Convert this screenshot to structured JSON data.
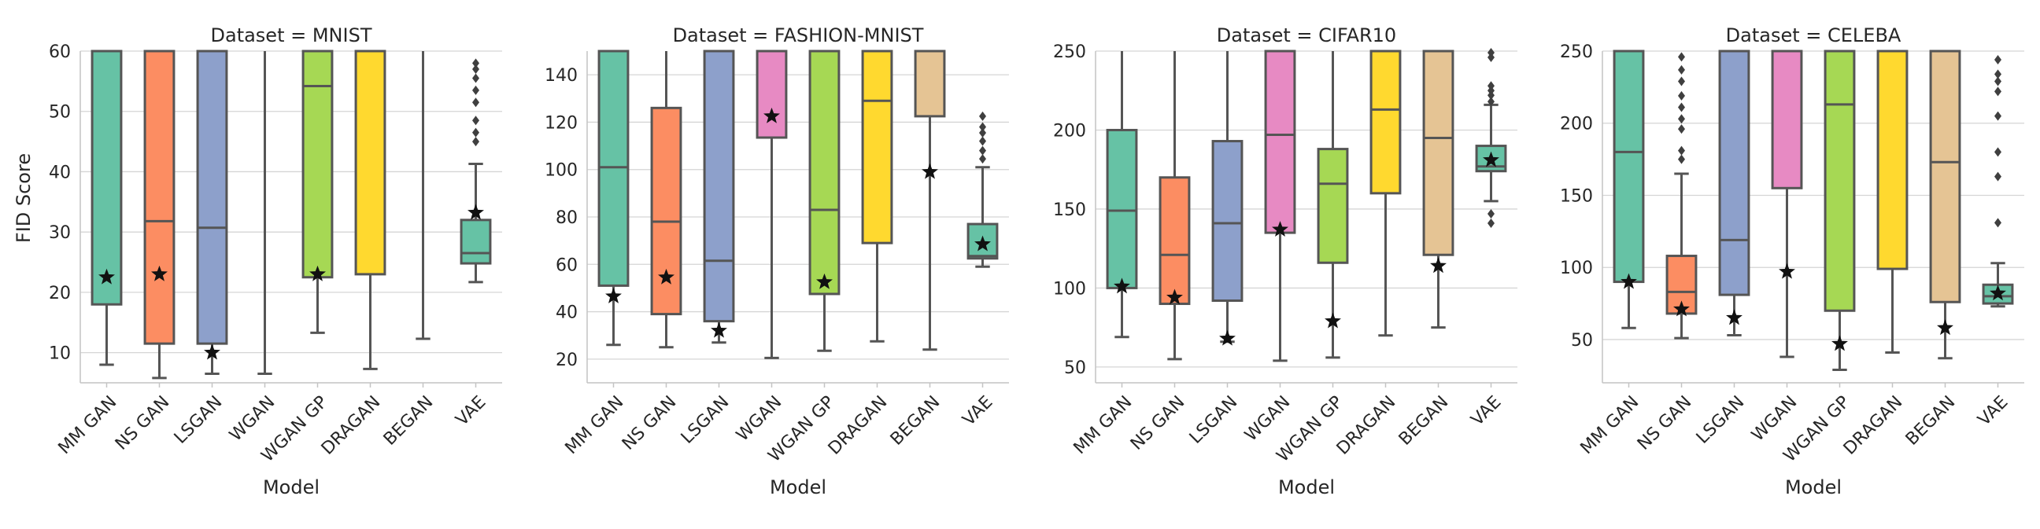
{
  "figure": {
    "ylabel": "FID Score",
    "xlabel": "Model"
  },
  "palette": [
    "#66c2a5",
    "#fc8d62",
    "#8da0cb",
    "#e78ac3",
    "#a6d854",
    "#ffd92f",
    "#e5c494",
    "#66c2a5"
  ],
  "chart_data": [
    {
      "type": "box",
      "title": "Dataset = MNIST",
      "xlabel": "Model",
      "ylabel": "FID Score",
      "categories": [
        "MM GAN",
        "NS GAN",
        "LSGAN",
        "WGAN",
        "WGAN GP",
        "DRAGAN",
        "BEGAN",
        "VAE"
      ],
      "ylim": [
        5,
        60
      ],
      "yticks": [
        10,
        20,
        30,
        40,
        50,
        60
      ],
      "grid": true,
      "boxes": [
        {
          "whislo": 8,
          "q1": 18,
          "med": 60,
          "q3": 60,
          "whishi": 60,
          "best": 22.5,
          "fliers": []
        },
        {
          "whislo": 5.8,
          "q1": 11.5,
          "med": 31.8,
          "q3": 60,
          "whishi": 60,
          "best": 23,
          "fliers": []
        },
        {
          "whislo": 6.5,
          "q1": 11.5,
          "med": 30.7,
          "q3": 60,
          "whishi": 60,
          "best": 10,
          "fliers": []
        },
        {
          "whislo": 6.5,
          "q1": 60,
          "med": 60,
          "q3": 60,
          "whishi": 60,
          "best": null,
          "fliers": []
        },
        {
          "whislo": 13.3,
          "q1": 22.5,
          "med": 54.2,
          "q3": 60,
          "whishi": 60,
          "best": 23,
          "fliers": []
        },
        {
          "whislo": 7.3,
          "q1": 23,
          "med": 60,
          "q3": 60,
          "whishi": 60,
          "best": null,
          "fliers": []
        },
        {
          "whislo": 12.3,
          "q1": 60,
          "med": 60,
          "q3": 60,
          "whishi": 60,
          "best": null,
          "fliers": []
        },
        {
          "whislo": 21.7,
          "q1": 24.8,
          "med": 26.5,
          "q3": 32,
          "whishi": 41.3,
          "best": 33.2,
          "fliers": [
            45,
            46.5,
            48.5,
            51.5,
            53.5,
            55.5,
            57,
            58
          ]
        }
      ]
    },
    {
      "type": "box",
      "title": "Dataset = FASHION-MNIST",
      "xlabel": "Model",
      "ylabel": "",
      "categories": [
        "MM GAN",
        "NS GAN",
        "LSGAN",
        "WGAN",
        "WGAN GP",
        "DRAGAN",
        "BEGAN",
        "VAE"
      ],
      "ylim": [
        10,
        150
      ],
      "yticks": [
        20,
        40,
        60,
        80,
        100,
        120,
        140
      ],
      "grid": true,
      "boxes": [
        {
          "whislo": 26,
          "q1": 51,
          "med": 101,
          "q3": 150,
          "whishi": 150,
          "best": 46.5,
          "fliers": []
        },
        {
          "whislo": 25,
          "q1": 39,
          "med": 78,
          "q3": 126,
          "whishi": 150,
          "best": 54.5,
          "fliers": []
        },
        {
          "whislo": 27,
          "q1": 36,
          "med": 61.5,
          "q3": 150,
          "whishi": 150,
          "best": 32,
          "fliers": []
        },
        {
          "whislo": 20.5,
          "q1": 113.5,
          "med": 150,
          "q3": 150,
          "whishi": 150,
          "best": 122.5,
          "fliers": []
        },
        {
          "whislo": 23.5,
          "q1": 47.5,
          "med": 83,
          "q3": 150,
          "whishi": 150,
          "best": 52.5,
          "fliers": []
        },
        {
          "whislo": 27.5,
          "q1": 69,
          "med": 129,
          "q3": 150,
          "whishi": 150,
          "best": null,
          "fliers": []
        },
        {
          "whislo": 24,
          "q1": 122.5,
          "med": 150,
          "q3": 150,
          "whishi": 150,
          "best": 99,
          "fliers": []
        },
        {
          "whislo": 59,
          "q1": 62.5,
          "med": 63.5,
          "q3": 77,
          "whishi": 101,
          "best": 68.5,
          "fliers": [
            104.5,
            108,
            112,
            115.5,
            118,
            122.5
          ]
        }
      ]
    },
    {
      "type": "box",
      "title": "Dataset = CIFAR10",
      "xlabel": "Model",
      "ylabel": "",
      "categories": [
        "MM GAN",
        "NS GAN",
        "LSGAN",
        "WGAN",
        "WGAN GP",
        "DRAGAN",
        "BEGAN",
        "VAE"
      ],
      "ylim": [
        40,
        250
      ],
      "yticks": [
        50,
        100,
        150,
        200,
        250
      ],
      "grid": true,
      "boxes": [
        {
          "whislo": 69,
          "q1": 100,
          "med": 149,
          "q3": 200,
          "whishi": 250,
          "best": 101,
          "fliers": []
        },
        {
          "whislo": 55,
          "q1": 90,
          "med": 121,
          "q3": 170,
          "whishi": 250,
          "best": 94,
          "fliers": []
        },
        {
          "whislo": 66,
          "q1": 92,
          "med": 141,
          "q3": 193,
          "whishi": 250,
          "best": 68,
          "fliers": []
        },
        {
          "whislo": 54,
          "q1": 135,
          "med": 197,
          "q3": 250,
          "whishi": 250,
          "best": 137,
          "fliers": []
        },
        {
          "whislo": 56,
          "q1": 116,
          "med": 166,
          "q3": 188,
          "whishi": 250,
          "best": 79,
          "fliers": []
        },
        {
          "whislo": 70,
          "q1": 160,
          "med": 213,
          "q3": 250,
          "whishi": 250,
          "best": null,
          "fliers": []
        },
        {
          "whislo": 75,
          "q1": 121,
          "med": 195,
          "q3": 250,
          "whishi": 250,
          "best": 114,
          "fliers": []
        },
        {
          "whislo": 155,
          "q1": 174,
          "med": 177,
          "q3": 190,
          "whishi": 216,
          "best": 181,
          "fliers": [
            141,
            147,
            218,
            222,
            225,
            228,
            246,
            249
          ]
        }
      ]
    },
    {
      "type": "box",
      "title": "Dataset = CELEBA",
      "xlabel": "Model",
      "ylabel": "",
      "categories": [
        "MM GAN",
        "NS GAN",
        "LSGAN",
        "WGAN",
        "WGAN GP",
        "DRAGAN",
        "BEGAN",
        "VAE"
      ],
      "ylim": [
        20,
        250
      ],
      "yticks": [
        50,
        100,
        150,
        200,
        250
      ],
      "grid": true,
      "boxes": [
        {
          "whislo": 58,
          "q1": 90,
          "med": 180,
          "q3": 250,
          "whishi": 250,
          "best": 90,
          "fliers": []
        },
        {
          "whislo": 51,
          "q1": 68,
          "med": 83,
          "q3": 108,
          "whishi": 165,
          "best": 71,
          "fliers": [
            175,
            181,
            196,
            203,
            211,
            219,
            229,
            237,
            246
          ]
        },
        {
          "whislo": 53,
          "q1": 81,
          "med": 119,
          "q3": 250,
          "whishi": 250,
          "best": 65,
          "fliers": []
        },
        {
          "whislo": 38,
          "q1": 155,
          "med": 250,
          "q3": 250,
          "whishi": 250,
          "best": 97,
          "fliers": []
        },
        {
          "whislo": 29,
          "q1": 70,
          "med": 213,
          "q3": 250,
          "whishi": 250,
          "best": 47,
          "fliers": []
        },
        {
          "whislo": 41,
          "q1": 99,
          "med": 250,
          "q3": 250,
          "whishi": 250,
          "best": null,
          "fliers": []
        },
        {
          "whislo": 37,
          "q1": 76,
          "med": 173,
          "q3": 250,
          "whishi": 250,
          "best": 58,
          "fliers": []
        },
        {
          "whislo": 73,
          "q1": 75,
          "med": 80,
          "q3": 88,
          "whishi": 103,
          "best": 82,
          "fliers": [
            131,
            163,
            180,
            205,
            222,
            229,
            234,
            244
          ]
        }
      ]
    }
  ]
}
